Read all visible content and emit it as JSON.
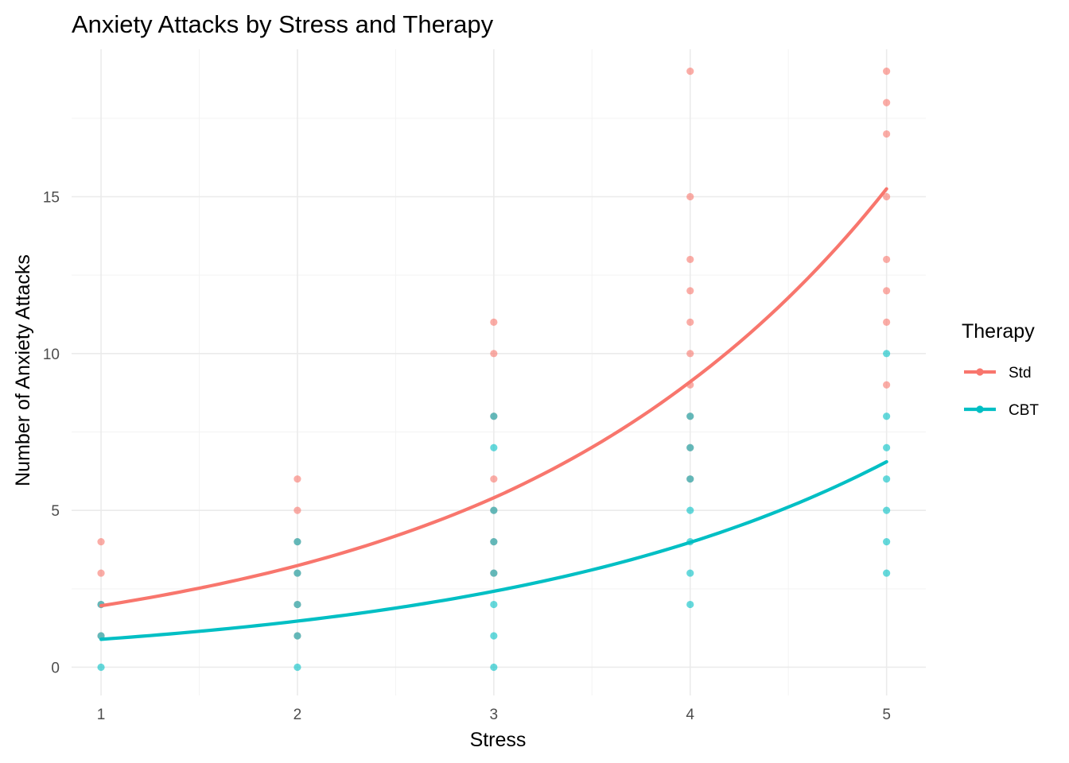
{
  "chart_data": {
    "type": "scatter",
    "title": "Anxiety Attacks by Stress and Therapy",
    "xlabel": "Stress",
    "ylabel": "Number of Anxiety Attacks",
    "xlim": [
      0.85,
      5.2
    ],
    "ylim": [
      -0.9,
      19.7
    ],
    "xticks": [
      1,
      2,
      3,
      4,
      5
    ],
    "yticks": [
      0,
      5,
      10,
      15
    ],
    "grid": true,
    "legend": {
      "title": "Therapy",
      "placement": "right"
    },
    "series": [
      {
        "name": "Std",
        "color": "#F8766D",
        "points": [
          [
            1,
            1
          ],
          [
            1,
            2
          ],
          [
            1,
            3
          ],
          [
            1,
            4
          ],
          [
            2,
            1
          ],
          [
            2,
            2
          ],
          [
            2,
            3
          ],
          [
            2,
            4
          ],
          [
            2,
            5
          ],
          [
            2,
            6
          ],
          [
            3,
            3
          ],
          [
            3,
            4
          ],
          [
            3,
            5
          ],
          [
            3,
            6
          ],
          [
            3,
            8
          ],
          [
            3,
            10
          ],
          [
            3,
            11
          ],
          [
            4,
            6
          ],
          [
            4,
            7
          ],
          [
            4,
            8
          ],
          [
            4,
            9
          ],
          [
            4,
            10
          ],
          [
            4,
            11
          ],
          [
            4,
            12
          ],
          [
            4,
            13
          ],
          [
            4,
            15
          ],
          [
            4,
            19
          ],
          [
            5,
            9
          ],
          [
            5,
            11
          ],
          [
            5,
            12
          ],
          [
            5,
            13
          ],
          [
            5,
            15
          ],
          [
            5,
            17
          ],
          [
            5,
            18
          ],
          [
            5,
            19
          ]
        ],
        "fit": [
          [
            1,
            1.96
          ],
          [
            2,
            3.24
          ],
          [
            3,
            5.4
          ],
          [
            4,
            9.1
          ],
          [
            5,
            15.25
          ]
        ]
      },
      {
        "name": "CBT",
        "color": "#00BFC4",
        "points": [
          [
            1,
            0
          ],
          [
            1,
            1
          ],
          [
            1,
            2
          ],
          [
            2,
            0
          ],
          [
            2,
            1
          ],
          [
            2,
            2
          ],
          [
            2,
            3
          ],
          [
            2,
            4
          ],
          [
            3,
            0
          ],
          [
            3,
            1
          ],
          [
            3,
            2
          ],
          [
            3,
            3
          ],
          [
            3,
            4
          ],
          [
            3,
            5
          ],
          [
            3,
            7
          ],
          [
            3,
            8
          ],
          [
            4,
            2
          ],
          [
            4,
            3
          ],
          [
            4,
            4
          ],
          [
            4,
            5
          ],
          [
            4,
            6
          ],
          [
            4,
            7
          ],
          [
            4,
            8
          ],
          [
            5,
            3
          ],
          [
            5,
            4
          ],
          [
            5,
            5
          ],
          [
            5,
            6
          ],
          [
            5,
            7
          ],
          [
            5,
            8
          ],
          [
            5,
            10
          ]
        ],
        "fit": [
          [
            1,
            0.89
          ],
          [
            2,
            1.47
          ],
          [
            3,
            2.42
          ],
          [
            4,
            3.98
          ],
          [
            5,
            6.55
          ]
        ]
      }
    ]
  }
}
